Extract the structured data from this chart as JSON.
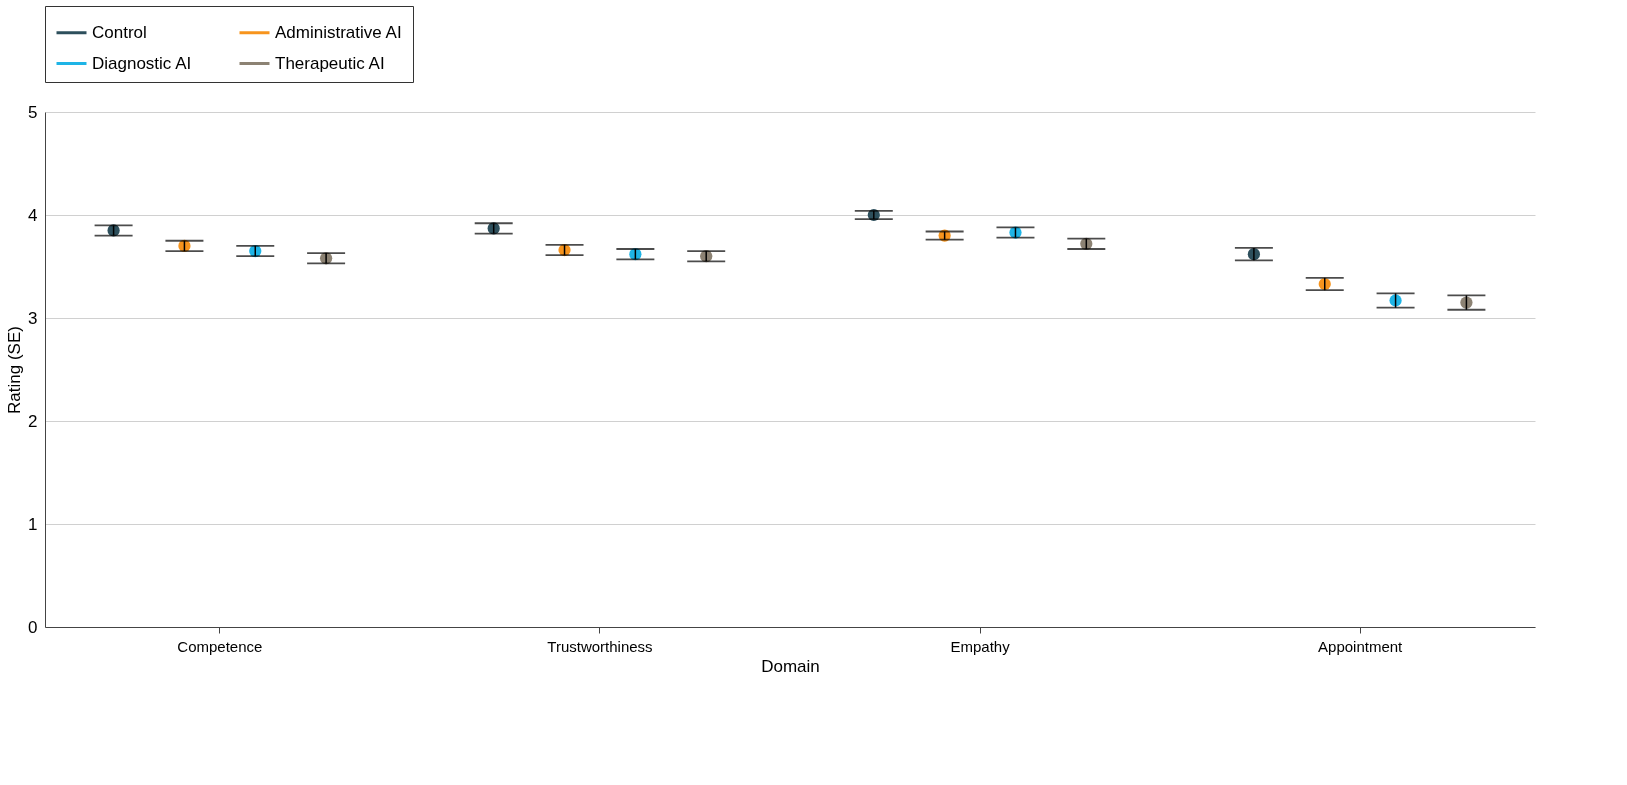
{
  "chart_data": {
    "type": "scatter",
    "xlabel": "Domain",
    "ylabel": "Rating (SE)",
    "categories": [
      "Competence",
      "Trustworthiness",
      "Empathy",
      "Appointment"
    ],
    "series": [
      {
        "name": "Control",
        "color": "#2d4f5c",
        "values": [
          3.85,
          3.87,
          4.0,
          3.62
        ],
        "errors": [
          0.05,
          0.05,
          0.04,
          0.06
        ]
      },
      {
        "name": "Administrative AI",
        "color": "#f7941d",
        "values": [
          3.7,
          3.66,
          3.8,
          3.33
        ],
        "errors": [
          0.05,
          0.05,
          0.04,
          0.06
        ]
      },
      {
        "name": "Diagnostic AI",
        "color": "#1eb4e6",
        "values": [
          3.65,
          3.62,
          3.83,
          3.17
        ],
        "errors": [
          0.05,
          0.05,
          0.05,
          0.07
        ]
      },
      {
        "name": "Therapeutic AI",
        "color": "#8c8273",
        "values": [
          3.58,
          3.6,
          3.72,
          3.15
        ],
        "errors": [
          0.05,
          0.05,
          0.05,
          0.07
        ]
      }
    ],
    "ylim": [
      0,
      5
    ],
    "yticks": [
      0,
      1,
      2,
      3,
      4,
      5
    ],
    "grid": "y",
    "legend": "top",
    "marker": "circle"
  }
}
